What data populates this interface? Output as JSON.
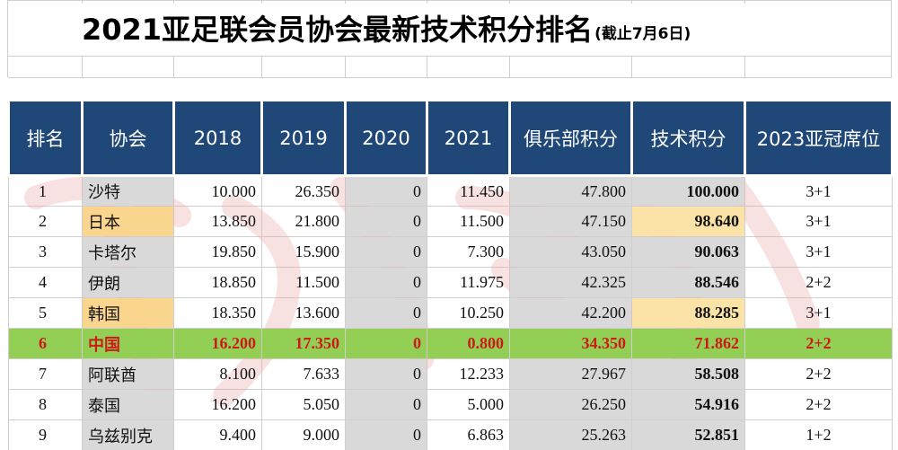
{
  "title": {
    "main": "2021亚足联会员协会最新技术积分排名",
    "sub": "(截止7月6日)"
  },
  "table": {
    "headers": [
      "排名",
      "协会",
      "2018",
      "2019",
      "2020",
      "2021",
      "俱乐部积分",
      "技术积分",
      "2023亚冠席位"
    ],
    "rows": [
      {
        "rank": "1",
        "name": "沙特",
        "y2018": "10.000",
        "y2019": "26.350",
        "y2020": "0",
        "y2021": "11.450",
        "club": "47.800",
        "tech": "100.000",
        "seats": "3+1",
        "style": "normal"
      },
      {
        "rank": "2",
        "name": "日本",
        "y2018": "13.850",
        "y2019": "21.800",
        "y2020": "0",
        "y2021": "11.500",
        "club": "47.150",
        "tech": "98.640",
        "seats": "3+1",
        "style": "yellow"
      },
      {
        "rank": "3",
        "name": "卡塔尔",
        "y2018": "19.850",
        "y2019": "15.900",
        "y2020": "0",
        "y2021": "7.300",
        "club": "43.050",
        "tech": "90.063",
        "seats": "3+1",
        "style": "normal"
      },
      {
        "rank": "4",
        "name": "伊朗",
        "y2018": "18.850",
        "y2019": "11.500",
        "y2020": "0",
        "y2021": "11.975",
        "club": "42.325",
        "tech": "88.546",
        "seats": "2+2",
        "style": "normal"
      },
      {
        "rank": "5",
        "name": "韩国",
        "y2018": "18.350",
        "y2019": "13.600",
        "y2020": "0",
        "y2021": "10.250",
        "club": "42.200",
        "tech": "88.285",
        "seats": "3+1",
        "style": "yellow"
      },
      {
        "rank": "6",
        "name": "中国",
        "y2018": "16.200",
        "y2019": "17.350",
        "y2020": "0",
        "y2021": "0.800",
        "club": "34.350",
        "tech": "71.862",
        "seats": "2+2",
        "style": "highlight"
      },
      {
        "rank": "7",
        "name": "阿联酋",
        "y2018": "8.100",
        "y2019": "7.633",
        "y2020": "0",
        "y2021": "12.233",
        "club": "27.967",
        "tech": "58.508",
        "seats": "2+2",
        "style": "normal"
      },
      {
        "rank": "8",
        "name": "泰国",
        "y2018": "16.200",
        "y2019": "5.050",
        "y2020": "0",
        "y2021": "5.000",
        "club": "26.250",
        "tech": "54.916",
        "seats": "2+2",
        "style": "normal"
      },
      {
        "rank": "9",
        "name": "乌兹别克",
        "y2018": "9.400",
        "y2019": "9.000",
        "y2020": "0",
        "y2021": "6.863",
        "club": "25.263",
        "tech": "52.851",
        "seats": "1+2",
        "style": "normal"
      }
    ]
  },
  "colors": {
    "header_bg": "#1f4777",
    "highlight_row": "#92cf54",
    "highlight_text": "#cc1a1a",
    "yellow_cell": "#f9d58e",
    "gray_cell": "#d9d9d9"
  }
}
